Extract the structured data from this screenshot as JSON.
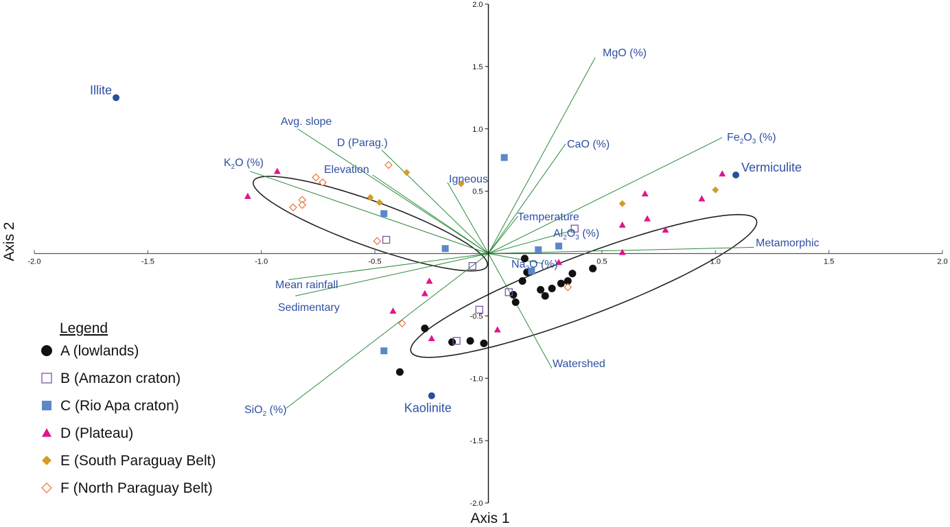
{
  "chart_data": {
    "type": "scatter",
    "subtype": "ordination-biplot",
    "title": "",
    "xlabel": "Axis 1",
    "ylabel": "Axis 2",
    "xlim": [
      -2.0,
      2.0
    ],
    "ylim": [
      -2.0,
      2.0
    ],
    "x_ticks": [
      "-2.0",
      "-1.5",
      "-1.0",
      "-0.5",
      "0.5",
      "1.0",
      "1.5",
      "2.0"
    ],
    "x_tick_values": [
      -2.0,
      -1.5,
      -1.0,
      -0.5,
      0.5,
      1.0,
      1.5,
      2.0
    ],
    "y_ticks": [
      "2.0",
      "1.5",
      "1.0",
      "0.5",
      "-0.5",
      "-1.0",
      "-1.5",
      "-2.0"
    ],
    "y_tick_values": [
      2.0,
      1.5,
      1.0,
      0.5,
      -0.5,
      -1.0,
      -1.5,
      -2.0
    ],
    "grid": false,
    "legend": {
      "title": "Legend",
      "placement": "bottom-left",
      "entries": [
        {
          "key": "A",
          "label": "A (lowlands)",
          "marker": "circle-filled",
          "color": "#111111"
        },
        {
          "key": "B",
          "label": "B (Amazon craton)",
          "marker": "square-open",
          "color": "#7b52a8"
        },
        {
          "key": "C",
          "label": "C (Rio Apa craton)",
          "marker": "square-filled",
          "color": "#5b88c8"
        },
        {
          "key": "D",
          "label": "D (Plateau)",
          "marker": "triangle-filled",
          "color": "#e0158a"
        },
        {
          "key": "E",
          "label": "E (South Paraguay Belt)",
          "marker": "diamond-filled",
          "color": "#d39b2a"
        },
        {
          "key": "F",
          "label": "F (North Paraguay Belt)",
          "marker": "diamond-open",
          "color": "#ee7a45"
        }
      ]
    },
    "series": [
      {
        "name": "A (lowlands)",
        "key": "A",
        "points": [
          [
            0.16,
            -0.04
          ],
          [
            0.17,
            -0.15
          ],
          [
            0.15,
            -0.22
          ],
          [
            0.11,
            -0.33
          ],
          [
            0.12,
            -0.39
          ],
          [
            0.23,
            -0.29
          ],
          [
            0.25,
            -0.34
          ],
          [
            0.28,
            -0.28
          ],
          [
            0.32,
            -0.24
          ],
          [
            0.35,
            -0.22
          ],
          [
            0.37,
            -0.16
          ],
          [
            0.46,
            -0.12
          ],
          [
            -0.28,
            -0.6
          ],
          [
            -0.16,
            -0.71
          ],
          [
            -0.08,
            -0.7
          ],
          [
            -0.02,
            -0.72
          ],
          [
            -0.39,
            -0.95
          ]
        ]
      },
      {
        "name": "B (Amazon craton)",
        "key": "B",
        "points": [
          [
            -0.45,
            0.11
          ],
          [
            -0.07,
            -0.1
          ],
          [
            -0.04,
            -0.45
          ],
          [
            0.09,
            -0.31
          ],
          [
            0.38,
            0.2
          ],
          [
            -0.14,
            -0.7
          ]
        ]
      },
      {
        "name": "C (Rio Apa craton)",
        "key": "C",
        "points": [
          [
            -0.46,
            0.32
          ],
          [
            -0.19,
            0.04
          ],
          [
            0.07,
            0.77
          ],
          [
            0.22,
            0.03
          ],
          [
            0.31,
            0.06
          ],
          [
            0.19,
            -0.14
          ],
          [
            -0.46,
            -0.78
          ]
        ]
      },
      {
        "name": "D (Plateau)",
        "key": "D",
        "points": [
          [
            -0.93,
            0.66
          ],
          [
            -1.06,
            0.46
          ],
          [
            -0.26,
            -0.22
          ],
          [
            -0.28,
            -0.32
          ],
          [
            -0.42,
            -0.46
          ],
          [
            -0.25,
            -0.68
          ],
          [
            0.04,
            -0.61
          ],
          [
            0.31,
            -0.07
          ],
          [
            0.59,
            0.01
          ],
          [
            0.59,
            0.23
          ],
          [
            0.69,
            0.48
          ],
          [
            0.7,
            0.28
          ],
          [
            0.78,
            0.19
          ],
          [
            0.94,
            0.44
          ],
          [
            1.03,
            0.64
          ]
        ]
      },
      {
        "name": "E (South Paraguay Belt)",
        "key": "E",
        "points": [
          [
            -0.36,
            0.65
          ],
          [
            -0.52,
            0.45
          ],
          [
            -0.48,
            0.41
          ],
          [
            -0.12,
            0.56
          ],
          [
            0.59,
            0.4
          ],
          [
            1.0,
            0.51
          ]
        ]
      },
      {
        "name": "F (North Paraguay Belt)",
        "key": "F",
        "points": [
          [
            -0.44,
            0.71
          ],
          [
            -0.76,
            0.61
          ],
          [
            -0.73,
            0.57
          ],
          [
            -0.82,
            0.43
          ],
          [
            -0.86,
            0.37
          ],
          [
            -0.82,
            0.39
          ],
          [
            -0.49,
            0.1
          ],
          [
            -0.38,
            -0.56
          ],
          [
            0.35,
            -0.27
          ]
        ]
      }
    ],
    "minerals": [
      {
        "label": "Illite",
        "x": -1.64,
        "y": 1.25
      },
      {
        "label": "Vermiculite",
        "x": 1.09,
        "y": 0.63
      },
      {
        "label": "Kaolinite",
        "x": -0.25,
        "y": -1.14
      }
    ],
    "vectors": [
      {
        "label": "MgO (%)",
        "label_sub": "",
        "x": 0.47,
        "y": 1.57
      },
      {
        "label": "CaO (%)",
        "label_sub": "",
        "x": 0.34,
        "y": 0.88
      },
      {
        "label": "Fe2O3 (%)",
        "x": 1.03,
        "y": 0.93
      },
      {
        "label": "Avg. slope",
        "x": -0.84,
        "y": 1.0
      },
      {
        "label": "D (Parag.)",
        "x": -0.47,
        "y": 0.83
      },
      {
        "label": "Elevation",
        "x": -0.51,
        "y": 0.63
      },
      {
        "label": "K2O (%)",
        "x": -1.05,
        "y": 0.66
      },
      {
        "label": "Igneous",
        "x": -0.18,
        "y": 0.57
      },
      {
        "label": "Temperature",
        "x": 0.13,
        "y": 0.3
      },
      {
        "label": "Al2O3 (%)",
        "x": 0.38,
        "y": 0.19
      },
      {
        "label": "Metamorphic",
        "x": 1.17,
        "y": 0.05
      },
      {
        "label": "Na2O (%)",
        "x": 0.24,
        "y": -0.08
      },
      {
        "label": "Watershed",
        "x": 0.28,
        "y": -0.92
      },
      {
        "label": "Mean rainfall",
        "x": -0.88,
        "y": -0.21
      },
      {
        "label": "Sedimentary",
        "x": -0.85,
        "y": -0.34
      },
      {
        "label": "SiO2 (%)",
        "x": -0.89,
        "y": -1.24
      }
    ],
    "ellipses": [
      {
        "group": "left",
        "cx": -0.52,
        "cy": 0.24,
        "rx": 0.62,
        "ry": 0.16,
        "angle_deg": -35
      },
      {
        "group": "right",
        "cx": 0.42,
        "cy": -0.26,
        "rx": 0.93,
        "ry": 0.21,
        "angle_deg": 36
      }
    ]
  },
  "labels": {
    "vector_labels": [
      {
        "key": "MgO (%)",
        "parts": [
          [
            "MgO (%)",
            ""
          ]
        ]
      },
      {
        "key": "CaO (%)",
        "parts": [
          [
            "CaO (%)",
            ""
          ]
        ]
      },
      {
        "key": "Fe2O3 (%)",
        "parts": [
          [
            "Fe",
            ""
          ],
          [
            "2",
            "sub"
          ],
          [
            "O",
            ""
          ],
          [
            "3",
            "sub"
          ],
          [
            " (%)",
            ""
          ]
        ]
      },
      {
        "key": "Avg. slope",
        "parts": [
          [
            "Avg. slope",
            ""
          ]
        ]
      },
      {
        "key": "D (Parag.)",
        "parts": [
          [
            "D (Parag.)",
            ""
          ]
        ]
      },
      {
        "key": "Elevation",
        "parts": [
          [
            "Elevation",
            ""
          ]
        ]
      },
      {
        "key": "K2O (%)",
        "parts": [
          [
            "K",
            ""
          ],
          [
            "2",
            "sub"
          ],
          [
            "O (%)",
            ""
          ]
        ]
      },
      {
        "key": "Igneous",
        "parts": [
          [
            "Igneous",
            ""
          ]
        ]
      },
      {
        "key": "Temperature",
        "parts": [
          [
            "Temperature",
            ""
          ]
        ]
      },
      {
        "key": "Al2O3 (%)",
        "parts": [
          [
            "Al",
            ""
          ],
          [
            "2",
            "sub"
          ],
          [
            "O",
            ""
          ],
          [
            "3",
            "sub"
          ],
          [
            " (%)",
            ""
          ]
        ]
      },
      {
        "key": "Metamorphic",
        "parts": [
          [
            "Metamorphic",
            ""
          ]
        ]
      },
      {
        "key": "Na2O (%)",
        "parts": [
          [
            "Na",
            ""
          ],
          [
            "2",
            "sub"
          ],
          [
            "O (%)",
            ""
          ]
        ]
      },
      {
        "key": "Watershed",
        "parts": [
          [
            "Watershed",
            ""
          ]
        ]
      },
      {
        "key": "Mean rainfall",
        "parts": [
          [
            "Mean rainfall",
            ""
          ]
        ]
      },
      {
        "key": "Sedimentary",
        "parts": [
          [
            "Sedimentary",
            ""
          ]
        ]
      },
      {
        "key": "SiO2 (%)",
        "parts": [
          [
            "SiO",
            ""
          ],
          [
            "2",
            "sub"
          ],
          [
            " (%)",
            ""
          ]
        ]
      }
    ]
  },
  "colors": {
    "vector_line": "#2a8a3a",
    "label_blue": "#2e4fa3",
    "mineral_dot": "#2a4f9e",
    "ellipse": "#222222",
    "axis": "#111111"
  }
}
